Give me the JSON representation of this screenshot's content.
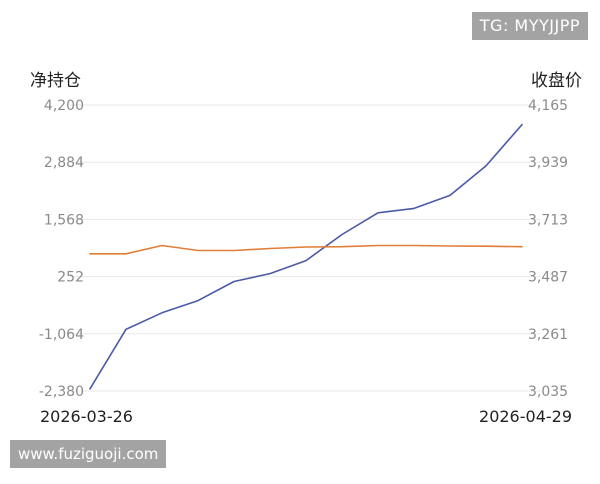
{
  "watermarks": {
    "top_right": "TG: MYYJJPP",
    "bottom_left": "www.fuziguoji.com"
  },
  "chart_data": {
    "type": "line",
    "x_start_label": "2026-03-26",
    "x_end_label": "2026-04-29",
    "left_axis": {
      "label": "净持仓",
      "ticks": [
        4200,
        2884,
        1568,
        252,
        -1064,
        -2380
      ],
      "tick_labels": [
        "4,200",
        "2,884",
        "1,568",
        "252",
        "-1,064",
        "-2,380"
      ],
      "range": [
        -2380,
        4200
      ]
    },
    "right_axis": {
      "label": "收盘价",
      "ticks": [
        4165,
        3939,
        3713,
        3487,
        3261,
        3035
      ],
      "tick_labels": [
        "4,165",
        "3,939",
        "3,713",
        "3,487",
        "3,261",
        "3,035"
      ],
      "range": [
        3035,
        4165
      ]
    },
    "grid": true,
    "series": [
      {
        "axis": "left",
        "color": "#4a5aa8",
        "values": [
          -2330,
          -960,
          -580,
          -300,
          140,
          320,
          620,
          1220,
          1720,
          1820,
          2120,
          2800,
          3750
        ]
      },
      {
        "axis": "right",
        "color": "#e07d36",
        "values": [
          3577,
          3577,
          3610,
          3590,
          3590,
          3598,
          3604,
          3605,
          3610,
          3610,
          3608,
          3607,
          3605
        ]
      }
    ]
  }
}
